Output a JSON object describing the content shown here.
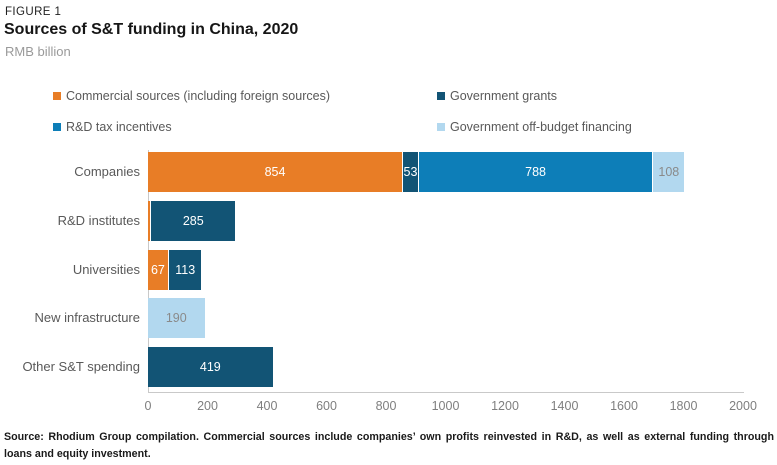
{
  "header": {
    "kicker": "FIGURE 1",
    "title": "Sources of S&T funding in China, 2020",
    "unit": "RMB billion"
  },
  "legend": [
    {
      "label": "Commercial sources (including foreign sources)",
      "series": "commercial"
    },
    {
      "label": "Government grants",
      "series": "government_grants"
    },
    {
      "label": "R&D tax incentives",
      "series": "rd_tax_incentives"
    },
    {
      "label": "Government off-budget financing",
      "series": "government_off_budget"
    }
  ],
  "colors": {
    "commercial": "#E87D26",
    "government_grants": "#125475",
    "rd_tax_incentives": "#0D7EB8",
    "government_off_budget": "#B2D8EF",
    "value_label_on_dark": "#FFFFFF",
    "value_label_on_light": "#8A8A8A",
    "axis_line": "#C9C9C9",
    "tick_text": "#7F7F7F",
    "category_text": "#595959",
    "legend_text": "#595959"
  },
  "chart_data": {
    "type": "bar",
    "orientation": "horizontal_stacked",
    "title": "Sources of S&T funding in China, 2020",
    "unit": "RMB billion",
    "xlim": [
      0,
      2000
    ],
    "xticks": [
      0,
      200,
      400,
      600,
      800,
      1000,
      1200,
      1400,
      1600,
      1800,
      2000
    ],
    "grid": false,
    "legend_position": "top",
    "categories": [
      "Companies",
      "R&D institutes",
      "Universities",
      "New infrastructure",
      "Other S&T spending"
    ],
    "series": [
      {
        "name": "Commercial sources (including foreign sources)",
        "key": "commercial",
        "values": [
          854,
          8,
          67,
          0,
          0
        ]
      },
      {
        "name": "Government grants",
        "key": "government_grants",
        "values": [
          53,
          285,
          113,
          0,
          419
        ]
      },
      {
        "name": "R&D tax incentives",
        "key": "rd_tax_incentives",
        "values": [
          788,
          0,
          0,
          0,
          0
        ]
      },
      {
        "name": "Government off-budget financing",
        "key": "government_off_budget",
        "values": [
          108,
          0,
          0,
          190,
          0
        ]
      }
    ],
    "data_labels": {
      "show": true,
      "min_value_to_label": 20
    }
  },
  "footer": {
    "source": "Source: Rhodium Group compilation. Commercial sources include companies’ own profits reinvested in R&D, as well as external funding through loans and equity investment."
  }
}
